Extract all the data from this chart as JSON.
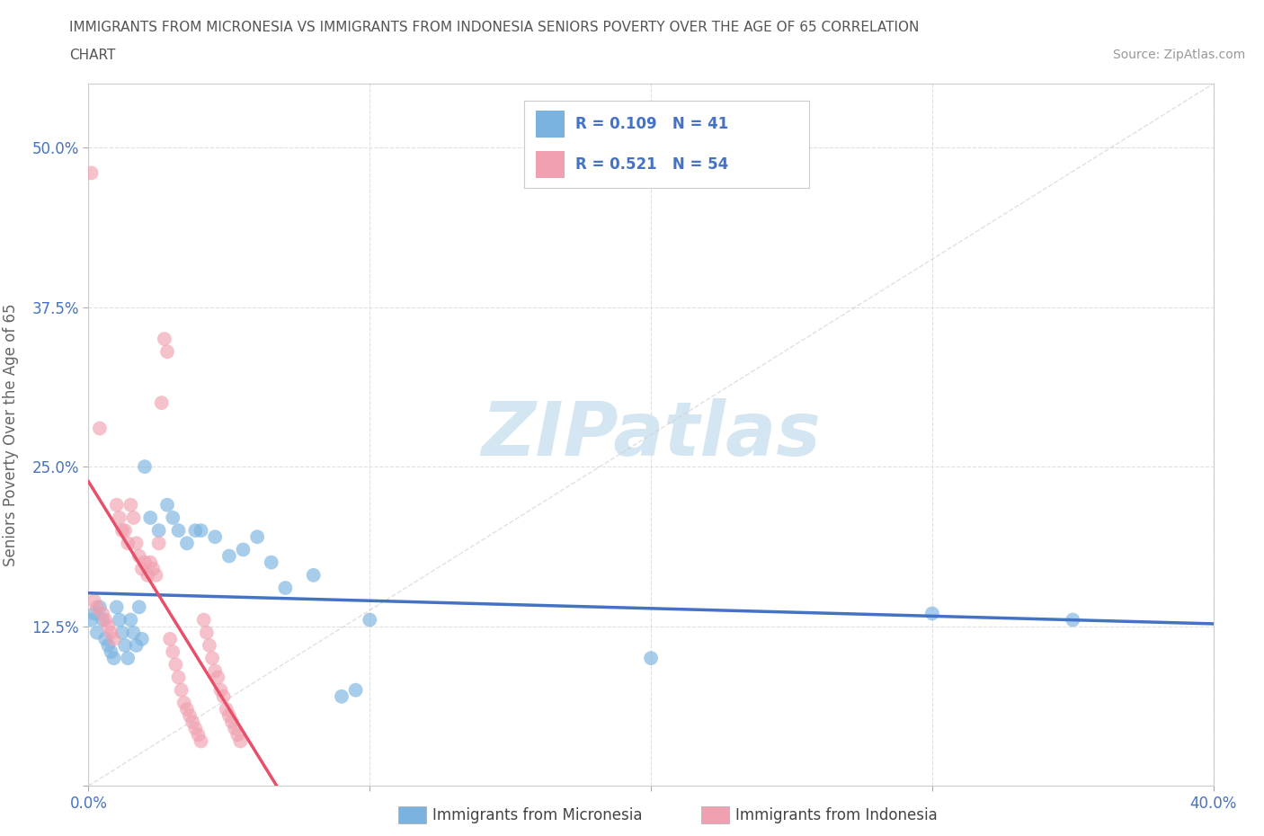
{
  "title_line1": "IMMIGRANTS FROM MICRONESIA VS IMMIGRANTS FROM INDONESIA SENIORS POVERTY OVER THE AGE OF 65 CORRELATION",
  "title_line2": "CHART",
  "source_text": "Source: ZipAtlas.com",
  "ylabel": "Seniors Poverty Over the Age of 65",
  "xlim": [
    0.0,
    0.4
  ],
  "ylim": [
    0.0,
    0.55
  ],
  "xticks": [
    0.0,
    0.1,
    0.2,
    0.3,
    0.4
  ],
  "yticks": [
    0.0,
    0.125,
    0.25,
    0.375,
    0.5
  ],
  "grid_color": "#e0e0e0",
  "background_color": "#ffffff",
  "watermark_text": "ZIPatlas",
  "watermark_color": "#d0e4f0",
  "color_micronesia": "#7ab3e0",
  "color_indonesia": "#f0a0b0",
  "color_micronesia_line": "#4472c4",
  "color_indonesia_line": "#e8506a",
  "micronesia_x": [
    0.001,
    0.002,
    0.003,
    0.004,
    0.005,
    0.006,
    0.007,
    0.008,
    0.009,
    0.01,
    0.011,
    0.012,
    0.013,
    0.014,
    0.015,
    0.016,
    0.017,
    0.018,
    0.019,
    0.02,
    0.022,
    0.025,
    0.028,
    0.03,
    0.032,
    0.035,
    0.038,
    0.04,
    0.045,
    0.05,
    0.055,
    0.06,
    0.065,
    0.07,
    0.08,
    0.09,
    0.095,
    0.1,
    0.2,
    0.3,
    0.35
  ],
  "micronesia_y": [
    0.13,
    0.135,
    0.12,
    0.14,
    0.13,
    0.115,
    0.11,
    0.105,
    0.1,
    0.14,
    0.13,
    0.12,
    0.11,
    0.1,
    0.13,
    0.12,
    0.11,
    0.14,
    0.115,
    0.25,
    0.21,
    0.2,
    0.22,
    0.21,
    0.2,
    0.19,
    0.2,
    0.2,
    0.195,
    0.18,
    0.185,
    0.195,
    0.175,
    0.155,
    0.165,
    0.07,
    0.075,
    0.13,
    0.1,
    0.135,
    0.13
  ],
  "indonesia_x": [
    0.001,
    0.002,
    0.003,
    0.004,
    0.005,
    0.006,
    0.007,
    0.008,
    0.009,
    0.01,
    0.011,
    0.012,
    0.013,
    0.014,
    0.015,
    0.016,
    0.017,
    0.018,
    0.019,
    0.02,
    0.021,
    0.022,
    0.023,
    0.024,
    0.025,
    0.026,
    0.027,
    0.028,
    0.029,
    0.03,
    0.031,
    0.032,
    0.033,
    0.034,
    0.035,
    0.036,
    0.037,
    0.038,
    0.039,
    0.04,
    0.041,
    0.042,
    0.043,
    0.044,
    0.045,
    0.046,
    0.047,
    0.048,
    0.049,
    0.05,
    0.051,
    0.052,
    0.053,
    0.054
  ],
  "indonesia_y": [
    0.48,
    0.145,
    0.14,
    0.28,
    0.135,
    0.13,
    0.125,
    0.12,
    0.115,
    0.22,
    0.21,
    0.2,
    0.2,
    0.19,
    0.22,
    0.21,
    0.19,
    0.18,
    0.17,
    0.175,
    0.165,
    0.175,
    0.17,
    0.165,
    0.19,
    0.3,
    0.35,
    0.34,
    0.115,
    0.105,
    0.095,
    0.085,
    0.075,
    0.065,
    0.06,
    0.055,
    0.05,
    0.045,
    0.04,
    0.035,
    0.13,
    0.12,
    0.11,
    0.1,
    0.09,
    0.085,
    0.075,
    0.07,
    0.06,
    0.055,
    0.05,
    0.045,
    0.04,
    0.035
  ]
}
